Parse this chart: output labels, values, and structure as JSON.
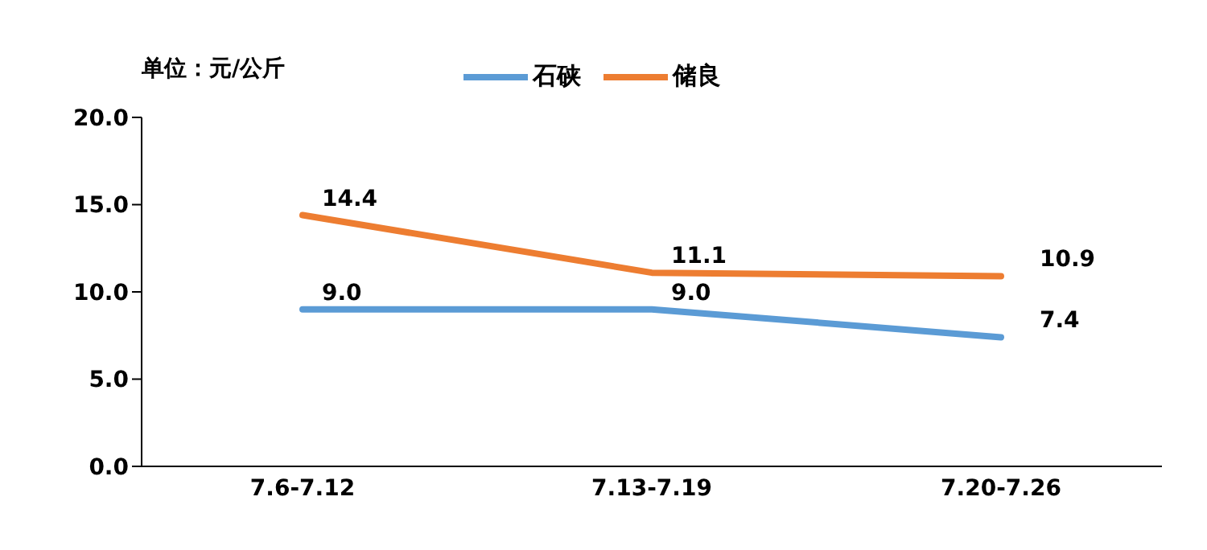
{
  "chart_data": {
    "type": "line",
    "ylabel": "单位：元/公斤",
    "categories": [
      "7.6-7.12",
      "7.13-7.19",
      "7.20-7.26"
    ],
    "series": [
      {
        "name": "石硖",
        "color": "#5b9bd5",
        "values": [
          9.0,
          9.0,
          7.4
        ],
        "value_labels": [
          "9.0",
          "9.0",
          "7.4"
        ]
      },
      {
        "name": "储良",
        "color": "#ed7d31",
        "values": [
          14.4,
          11.1,
          10.9
        ],
        "value_labels": [
          "14.4",
          "11.1",
          "10.9"
        ]
      }
    ],
    "ylim": [
      0,
      20
    ],
    "yticks": [
      {
        "value": 0,
        "label": "0.0"
      },
      {
        "value": 5,
        "label": "5.0"
      },
      {
        "value": 10,
        "label": "10.0"
      },
      {
        "value": 15,
        "label": "15.0"
      },
      {
        "value": 20,
        "label": "20.0"
      }
    ],
    "grid": false,
    "legend": "top",
    "marker": "none",
    "line_style": "solid"
  }
}
